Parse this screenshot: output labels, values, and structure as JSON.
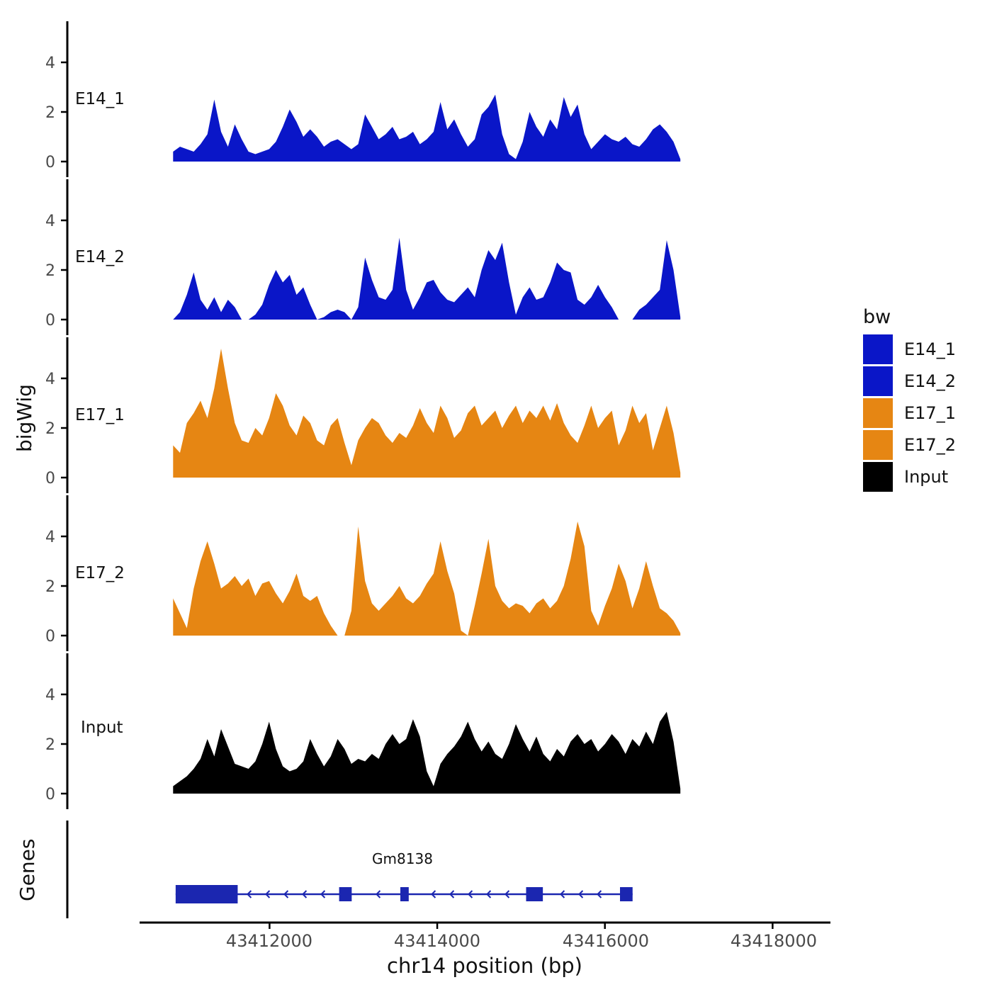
{
  "chart_data": {
    "type": "area",
    "title": "",
    "xlabel": "chr14 position (bp)",
    "ylabel": "bigWig",
    "genes_panel_label": "Genes",
    "x_axis": {
      "range": [
        43410450,
        43418690
      ],
      "ticks": [
        43412000,
        43414000,
        43416000,
        43418000
      ]
    },
    "y_axis": {
      "ticks": [
        0,
        2,
        4
      ],
      "ylim": [
        0,
        5.6
      ]
    },
    "legend": {
      "title": "bw",
      "entries": [
        {
          "label": "E14_1",
          "color": "#0A16C8"
        },
        {
          "label": "E14_2",
          "color": "#0A16C8"
        },
        {
          "label": "E17_1",
          "color": "#E68613"
        },
        {
          "label": "E17_2",
          "color": "#E68613"
        },
        {
          "label": "Input",
          "color": "#000000"
        }
      ]
    },
    "tracks": [
      {
        "name": "E14_1",
        "color": "#0A16C8",
        "x_start": 43410850,
        "x_end": 43416900,
        "values": [
          0.4,
          0.6,
          0.5,
          0.4,
          0.7,
          1.1,
          2.5,
          1.2,
          0.6,
          1.5,
          0.9,
          0.4,
          0.3,
          0.4,
          0.5,
          0.8,
          1.4,
          2.1,
          1.6,
          1.0,
          1.3,
          1.0,
          0.6,
          0.8,
          0.9,
          0.7,
          0.5,
          0.7,
          1.9,
          1.4,
          0.9,
          1.1,
          1.4,
          0.9,
          1.0,
          1.2,
          0.7,
          0.9,
          1.2,
          2.4,
          1.3,
          1.7,
          1.1,
          0.6,
          0.9,
          1.9,
          2.2,
          2.7,
          1.1,
          0.3,
          0.1,
          0.8,
          2.0,
          1.4,
          1.0,
          1.7,
          1.3,
          2.6,
          1.8,
          2.3,
          1.1,
          0.5,
          0.8,
          1.1,
          0.9,
          0.8,
          1.0,
          0.7,
          0.6,
          0.9,
          1.3,
          1.5,
          1.2,
          0.8,
          0.1
        ]
      },
      {
        "name": "E14_2",
        "color": "#0A16C8",
        "x_start": 43410850,
        "x_end": 43416900,
        "values": [
          0.0,
          0.3,
          1.0,
          1.9,
          0.8,
          0.4,
          0.9,
          0.3,
          0.8,
          0.5,
          0.0,
          0.0,
          0.2,
          0.6,
          1.4,
          2.0,
          1.5,
          1.8,
          1.0,
          1.3,
          0.6,
          0.0,
          0.1,
          0.3,
          0.4,
          0.3,
          0.0,
          0.5,
          2.5,
          1.6,
          0.9,
          0.8,
          1.2,
          3.3,
          1.2,
          0.4,
          0.9,
          1.5,
          1.6,
          1.1,
          0.8,
          0.7,
          1.0,
          1.3,
          0.9,
          2.0,
          2.8,
          2.4,
          3.1,
          1.5,
          0.2,
          0.9,
          1.3,
          0.8,
          0.9,
          1.5,
          2.3,
          2.0,
          1.9,
          0.8,
          0.6,
          0.9,
          1.4,
          0.9,
          0.5,
          0.0,
          0.0,
          0.0,
          0.4,
          0.6,
          0.9,
          1.2,
          3.2,
          2.0,
          0.1
        ]
      },
      {
        "name": "E17_1",
        "color": "#E68613",
        "x_start": 43410850,
        "x_end": 43416900,
        "values": [
          1.3,
          1.0,
          2.2,
          2.6,
          3.1,
          2.4,
          3.6,
          5.2,
          3.6,
          2.2,
          1.5,
          1.4,
          2.0,
          1.7,
          2.4,
          3.4,
          2.9,
          2.1,
          1.7,
          2.5,
          2.2,
          1.5,
          1.3,
          2.1,
          2.4,
          1.4,
          0.5,
          1.5,
          2.0,
          2.4,
          2.2,
          1.7,
          1.4,
          1.8,
          1.6,
          2.1,
          2.8,
          2.2,
          1.8,
          2.9,
          2.4,
          1.6,
          1.9,
          2.6,
          2.9,
          2.1,
          2.4,
          2.7,
          2.0,
          2.5,
          2.9,
          2.2,
          2.7,
          2.4,
          2.9,
          2.3,
          3.0,
          2.2,
          1.7,
          1.4,
          2.1,
          2.9,
          2.0,
          2.4,
          2.7,
          1.3,
          1.9,
          2.9,
          2.2,
          2.6,
          1.1,
          2.0,
          2.9,
          1.8,
          0.2
        ]
      },
      {
        "name": "E17_2",
        "color": "#E68613",
        "x_start": 43410850,
        "x_end": 43416900,
        "values": [
          1.5,
          0.9,
          0.3,
          1.9,
          3.0,
          3.8,
          2.9,
          1.9,
          2.1,
          2.4,
          2.0,
          2.3,
          1.6,
          2.1,
          2.2,
          1.7,
          1.3,
          1.8,
          2.5,
          1.6,
          1.4,
          1.6,
          0.9,
          0.4,
          0.0,
          0.0,
          1.0,
          4.4,
          2.2,
          1.3,
          1.0,
          1.3,
          1.6,
          2.0,
          1.5,
          1.3,
          1.6,
          2.1,
          2.5,
          3.8,
          2.6,
          1.7,
          0.2,
          0.0,
          1.2,
          2.5,
          3.9,
          2.0,
          1.4,
          1.1,
          1.3,
          1.2,
          0.9,
          1.3,
          1.5,
          1.1,
          1.4,
          2.0,
          3.1,
          4.6,
          3.6,
          1.0,
          0.4,
          1.2,
          1.9,
          2.9,
          2.2,
          1.1,
          1.9,
          3.0,
          2.0,
          1.1,
          0.9,
          0.6,
          0.1
        ]
      },
      {
        "name": "Input",
        "color": "#000000",
        "x_start": 43410850,
        "x_end": 43416900,
        "values": [
          0.3,
          0.5,
          0.7,
          1.0,
          1.4,
          2.2,
          1.5,
          2.6,
          1.9,
          1.2,
          1.1,
          1.0,
          1.3,
          2.0,
          2.9,
          1.8,
          1.1,
          0.9,
          1.0,
          1.3,
          2.2,
          1.6,
          1.1,
          1.5,
          2.2,
          1.8,
          1.2,
          1.4,
          1.3,
          1.6,
          1.4,
          2.0,
          2.4,
          2.0,
          2.2,
          3.0,
          2.3,
          0.9,
          0.3,
          1.2,
          1.6,
          1.9,
          2.3,
          2.9,
          2.2,
          1.7,
          2.1,
          1.6,
          1.4,
          2.0,
          2.8,
          2.2,
          1.7,
          2.3,
          1.6,
          1.3,
          1.8,
          1.5,
          2.1,
          2.4,
          2.0,
          2.2,
          1.7,
          2.0,
          2.4,
          2.1,
          1.6,
          2.2,
          1.9,
          2.5,
          2.0,
          2.9,
          3.3,
          2.1,
          0.2
        ]
      }
    ],
    "gene": {
      "name": "Gm8138",
      "strand": "-",
      "color": "#1B26B0",
      "start": 43410880,
      "end": 43416330,
      "exons": [
        [
          43410880,
          43411620
        ],
        [
          43412830,
          43412980
        ],
        [
          43413560,
          43413660
        ],
        [
          43415060,
          43415260
        ],
        [
          43416180,
          43416330
        ]
      ]
    }
  }
}
